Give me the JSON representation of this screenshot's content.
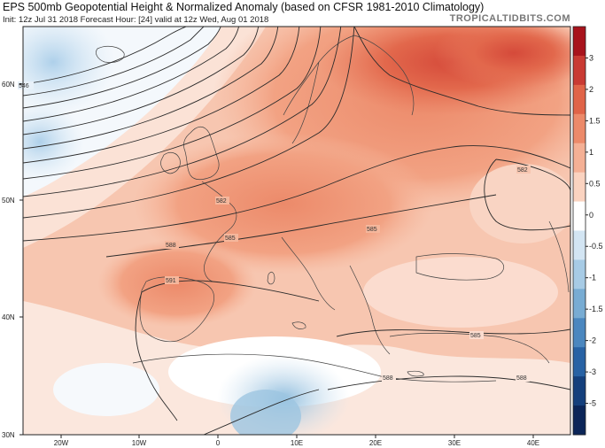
{
  "header": {
    "title": "EPS 500mb Geopotential Height & Normalized Anomaly (based on CFSR 1981-2010 Climatology)",
    "subtitle": "Init: 12z Jul 31 2018   Forecast Hour: [24]   valid at 12z Wed, Aug 01 2018",
    "brand": "TROPICALTIDBITS.COM"
  },
  "map": {
    "lon_labels": [
      "20W",
      "10W",
      "0",
      "10E",
      "20E",
      "30E",
      "40E"
    ],
    "lat_labels": [
      "60N",
      "50N",
      "40N",
      "30N"
    ],
    "contour_labels": [
      "546",
      "582",
      "585",
      "588",
      "591",
      "585",
      "585",
      "582",
      "588",
      "588"
    ]
  },
  "colorbar": {
    "ticks": [
      "3",
      "2",
      "1.5",
      "1",
      "0.5",
      "0",
      "-0.5",
      "-1",
      "-1.5",
      "-2",
      "-3",
      "-5"
    ],
    "colors": [
      "#a8131c",
      "#c93a33",
      "#e06448",
      "#ec8a6a",
      "#f4b095",
      "#fad3c0",
      "#ffffff",
      "#d3e5f3",
      "#a7cbe5",
      "#78acd3",
      "#4b87bf",
      "#2862a4",
      "#143f7c",
      "#0b2558"
    ]
  }
}
